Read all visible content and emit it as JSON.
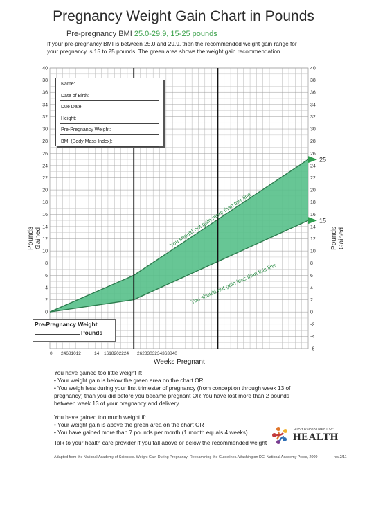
{
  "header": {
    "title": "Pregnancy Weight Gain Chart in Pounds",
    "subtitle_prefix": "Pre-pregnancy BMI ",
    "subtitle_highlight": "25.0-29.9, 15-25 pounds",
    "intro_line1": "If your pre-pregnancy BMI is between 25.0 and 29.9, then the recommended weight gain range for",
    "intro_line2": "your pregnancy is 15 to 25 pounds. The green area shows the weight gain recommendation."
  },
  "info_box": {
    "fields": [
      "Name:",
      "Date of Birth:",
      "Due Date:",
      "Height:",
      "Pre-Pregnancy Weight:",
      "BMI (Body Mass Index):"
    ]
  },
  "pre_pregnancy_box": {
    "title": "Pre-Pregnancy Weight",
    "unit": "Pounds"
  },
  "chart_data": {
    "type": "area",
    "xlabel": "Weeks Pregnant",
    "ylabel_left": "Pounds Gained",
    "ylabel_right": "Pounds Gained",
    "xlim": [
      0,
      40
    ],
    "ylim": [
      -6,
      40
    ],
    "x_tick_labels": [
      "0",
      "2",
      "4",
      "6",
      "8",
      "10",
      "12",
      "14",
      "16",
      "18",
      "20",
      "22",
      "24",
      "26",
      "28",
      "30",
      "32",
      "34",
      "36",
      "38",
      "40"
    ],
    "x_tick_text_groups": [
      "0",
      "24681012",
      "14",
      "1618202224",
      "2628303234363840"
    ],
    "y_ticks_left": [
      40,
      38,
      36,
      34,
      32,
      30,
      28,
      26,
      24,
      22,
      20,
      18,
      16,
      14,
      12,
      10,
      8,
      6,
      4,
      2,
      0
    ],
    "y_ticks_right": [
      40,
      38,
      36,
      34,
      32,
      30,
      28,
      26,
      24,
      22,
      20,
      18,
      16,
      14,
      12,
      10,
      8,
      6,
      4,
      2,
      0,
      -2,
      -4,
      -6
    ],
    "vertical_markers": [
      13,
      26
    ],
    "upper_bound": {
      "x": [
        0,
        13,
        40
      ],
      "y": [
        0,
        6,
        25
      ]
    },
    "lower_bound": {
      "x": [
        0,
        13,
        40
      ],
      "y": [
        0,
        2,
        15
      ]
    },
    "end_markers": [
      {
        "label": "25",
        "y": 25
      },
      {
        "label": "15",
        "y": 15
      }
    ],
    "annotations": {
      "upper": "You should not gain more than this line",
      "lower": "You should not gain less than this line"
    },
    "fill_color": "#56c08a",
    "line_color": "#2e7d4f"
  },
  "notes": {
    "too_little_title": "You have gained too little weight if:",
    "too_little_1": "• Your weight gain is below the green area on the chart OR",
    "too_little_2a": "• You weigh less during your first trimester of pregnancy (from conception through week 13 of",
    "too_little_2b": "pregnancy) than you did before you became pregnant OR You have lost more than 2 pounds",
    "too_little_2c": "between week 13 of your pregnancy and delivery",
    "too_much_title": "You have gained too much weight if:",
    "too_much_1": "• Your weight gain is above the green area on the chart OR",
    "too_much_2": "• You have gained more than 7 pounds per month (1 month equals 4 weeks)",
    "talk": "Talk to your health care provider if you fall above or below the recommended weight"
  },
  "footer": {
    "source": "Adapted from the National Academy of Sciences.  Weight Gain During Pregnancy: Reexamining the Guidelines. Washington DC:  National Academy Press, 2009",
    "rev": "rev.2/11"
  },
  "logo": {
    "dept": "UTAH DEPARTMENT OF",
    "name": "HEALTH"
  }
}
